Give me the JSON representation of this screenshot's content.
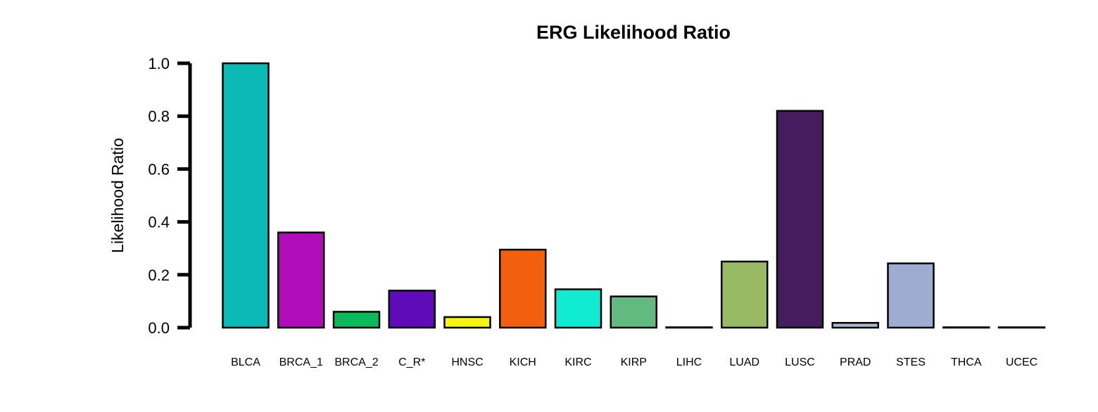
{
  "chart_data": {
    "type": "bar",
    "title": "ERG Likelihood Ratio",
    "xlabel": "",
    "ylabel": "Likelihood Ratio",
    "ylim": [
      0,
      1.0
    ],
    "yticks": [
      "0.0",
      "0.2",
      "0.4",
      "0.6",
      "0.8",
      "1.0"
    ],
    "grid": false,
    "legend": "none",
    "categories": [
      "BLCA",
      "BRCA_1",
      "BRCA_2",
      "C_R*",
      "HNSC",
      "KICH",
      "KIRC",
      "KIRP",
      "LIHC",
      "LUAD",
      "LUSC",
      "PRAD",
      "STES",
      "THCA",
      "UCEC"
    ],
    "values": [
      1.0,
      0.36,
      0.06,
      0.14,
      0.04,
      0.295,
      0.145,
      0.118,
      0.0,
      0.25,
      0.82,
      0.018,
      0.243,
      0.0,
      0.0
    ],
    "colors": [
      "#0bbab5",
      "#b20bba",
      "#0bba5a",
      "#5f0bba",
      "#f5f511",
      "#f25f0f",
      "#11ebd1",
      "#63ba80",
      "#000000",
      "#97ba63",
      "#461c5e",
      "#a7bdcf",
      "#9facd1",
      "#000000",
      "#000000"
    ]
  }
}
